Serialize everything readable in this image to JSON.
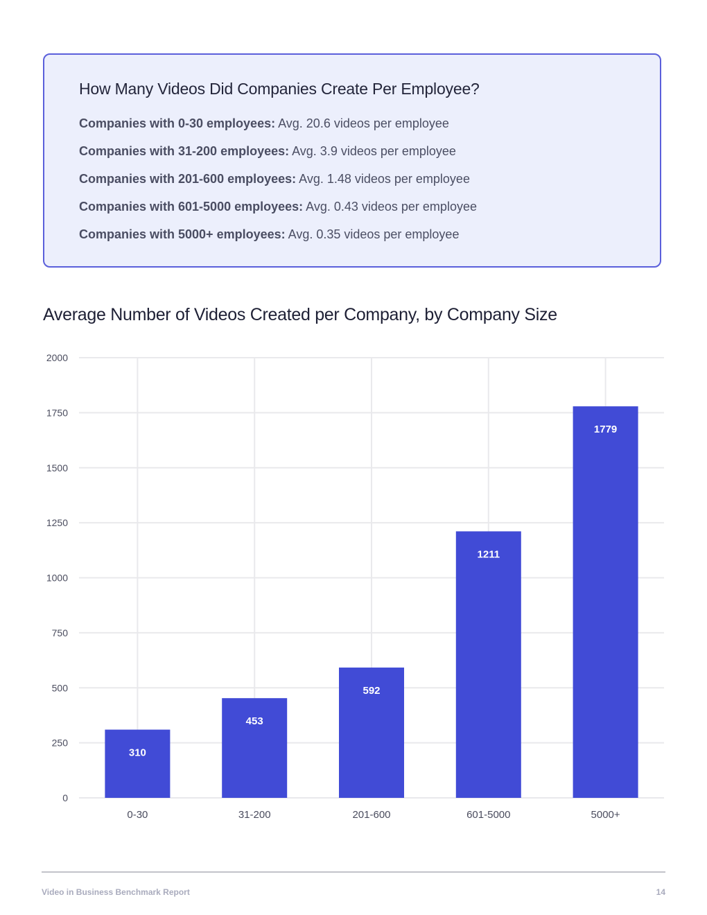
{
  "callout": {
    "title": "How Many Videos Did Companies Create Per Employee?",
    "lines": [
      {
        "label": "Companies with 0-30 employees:",
        "value": " Avg. 20.6 videos per employee"
      },
      {
        "label": "Companies with 31-200 employees:",
        "value": " Avg. 3.9 videos per employee"
      },
      {
        "label": "Companies with 201-600 employees:",
        "value": " Avg. 1.48 videos per employee"
      },
      {
        "label": "Companies with 601-5000 employees:",
        "value": " Avg. 0.43 videos per employee"
      },
      {
        "label": "Companies with 5000+ employees:",
        "value": " Avg. 0.35 videos per employee"
      }
    ]
  },
  "chart_data": {
    "type": "bar",
    "title": "Average Number of Videos Created per Company, by Company Size",
    "categories": [
      "0-30",
      "31-200",
      "201-600",
      "601-5000",
      "5000+"
    ],
    "values": [
      310,
      453,
      592,
      1211,
      1779
    ],
    "data_labels": [
      "310",
      "453",
      "592",
      "1211",
      "1779"
    ],
    "xlabel": "",
    "ylabel": "",
    "ylim": [
      0,
      2000
    ],
    "yticks": [
      0,
      250,
      500,
      750,
      1000,
      1250,
      1500,
      1750,
      2000
    ],
    "grid": true,
    "legend": "none",
    "colors": {
      "bar": "#414bd6",
      "grid": "#e9e9ec",
      "tick_text": "#4a4c5e",
      "data_label": "#ffffff"
    }
  },
  "footer": {
    "report": "Video in Business Benchmark Report",
    "page": "14"
  }
}
